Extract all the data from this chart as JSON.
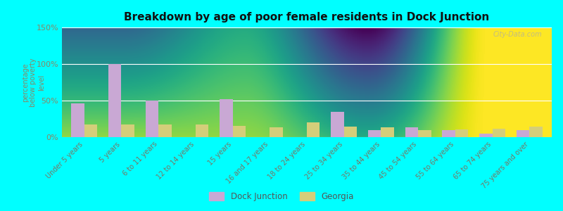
{
  "title": "Breakdown by age of poor female residents in Dock Junction",
  "ylabel": "percentage\nbelow poverty\nlevel",
  "categories": [
    "Under 5 years",
    "5 years",
    "6 to 11 years",
    "12 to 14 years",
    "15 years",
    "16 and 17 years",
    "18 to 24 years",
    "25 to 34 years",
    "35 to 44 years",
    "45 to 54 years",
    "55 to 64 years",
    "65 to 74 years",
    "75 years and over"
  ],
  "dock_junction": [
    46,
    100,
    50,
    0,
    52,
    0,
    0,
    35,
    10,
    13,
    10,
    5,
    10
  ],
  "georgia": [
    17,
    17,
    17,
    17,
    15,
    13,
    20,
    14,
    13,
    10,
    11,
    12,
    14
  ],
  "dock_color": "#c9a8d4",
  "georgia_color": "#d4ce7a",
  "ylim": [
    0,
    150
  ],
  "yticks": [
    0,
    50,
    100,
    150
  ],
  "ytick_labels": [
    "0%",
    "50%",
    "100%",
    "150%"
  ],
  "background_color": "#00ffff",
  "axis_color": "#888866",
  "tick_color": "#777766",
  "watermark": "City-Data.com",
  "bar_width": 0.35,
  "legend_labels": [
    "Dock Junction",
    "Georgia"
  ]
}
